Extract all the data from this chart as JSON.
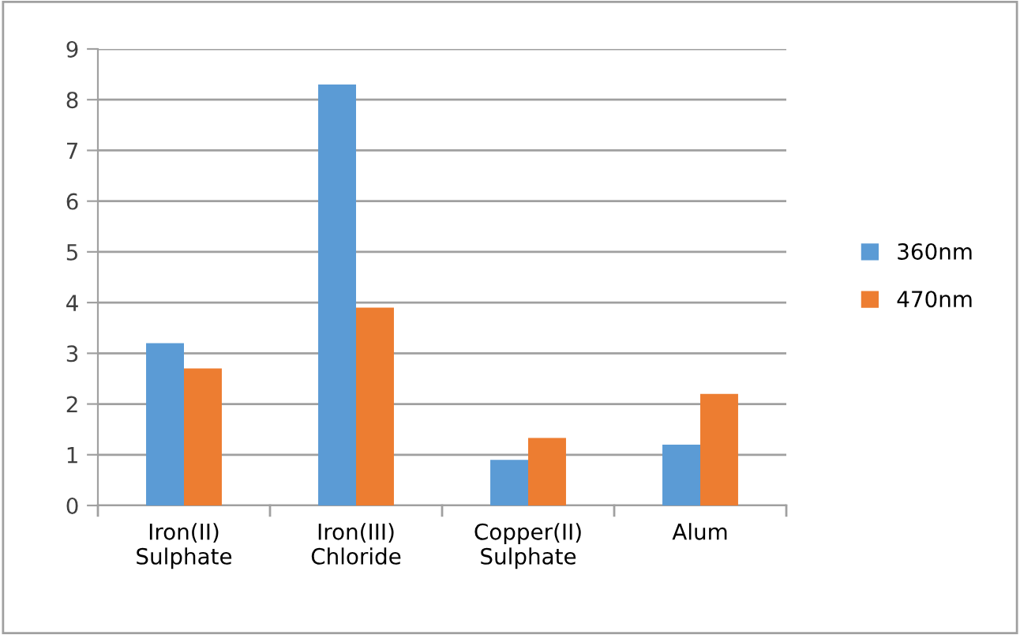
{
  "chart_data": {
    "type": "bar",
    "categories": [
      "Iron(II)\nSulphate",
      "Iron(III)\nChloride",
      "Copper(II)\nSulphate",
      "Alum"
    ],
    "series": [
      {
        "name": "360nm",
        "color": "#5b9bd5",
        "values": [
          3.2,
          8.3,
          0.9,
          1.2
        ]
      },
      {
        "name": "470nm",
        "color": "#ed7d31",
        "values": [
          2.7,
          3.9,
          1.33,
          2.2
        ]
      }
    ],
    "ylim": [
      0,
      9
    ],
    "yticks": [
      0,
      1,
      2,
      3,
      4,
      5,
      6,
      7,
      8,
      9
    ],
    "grid": "y",
    "legend": "right"
  }
}
